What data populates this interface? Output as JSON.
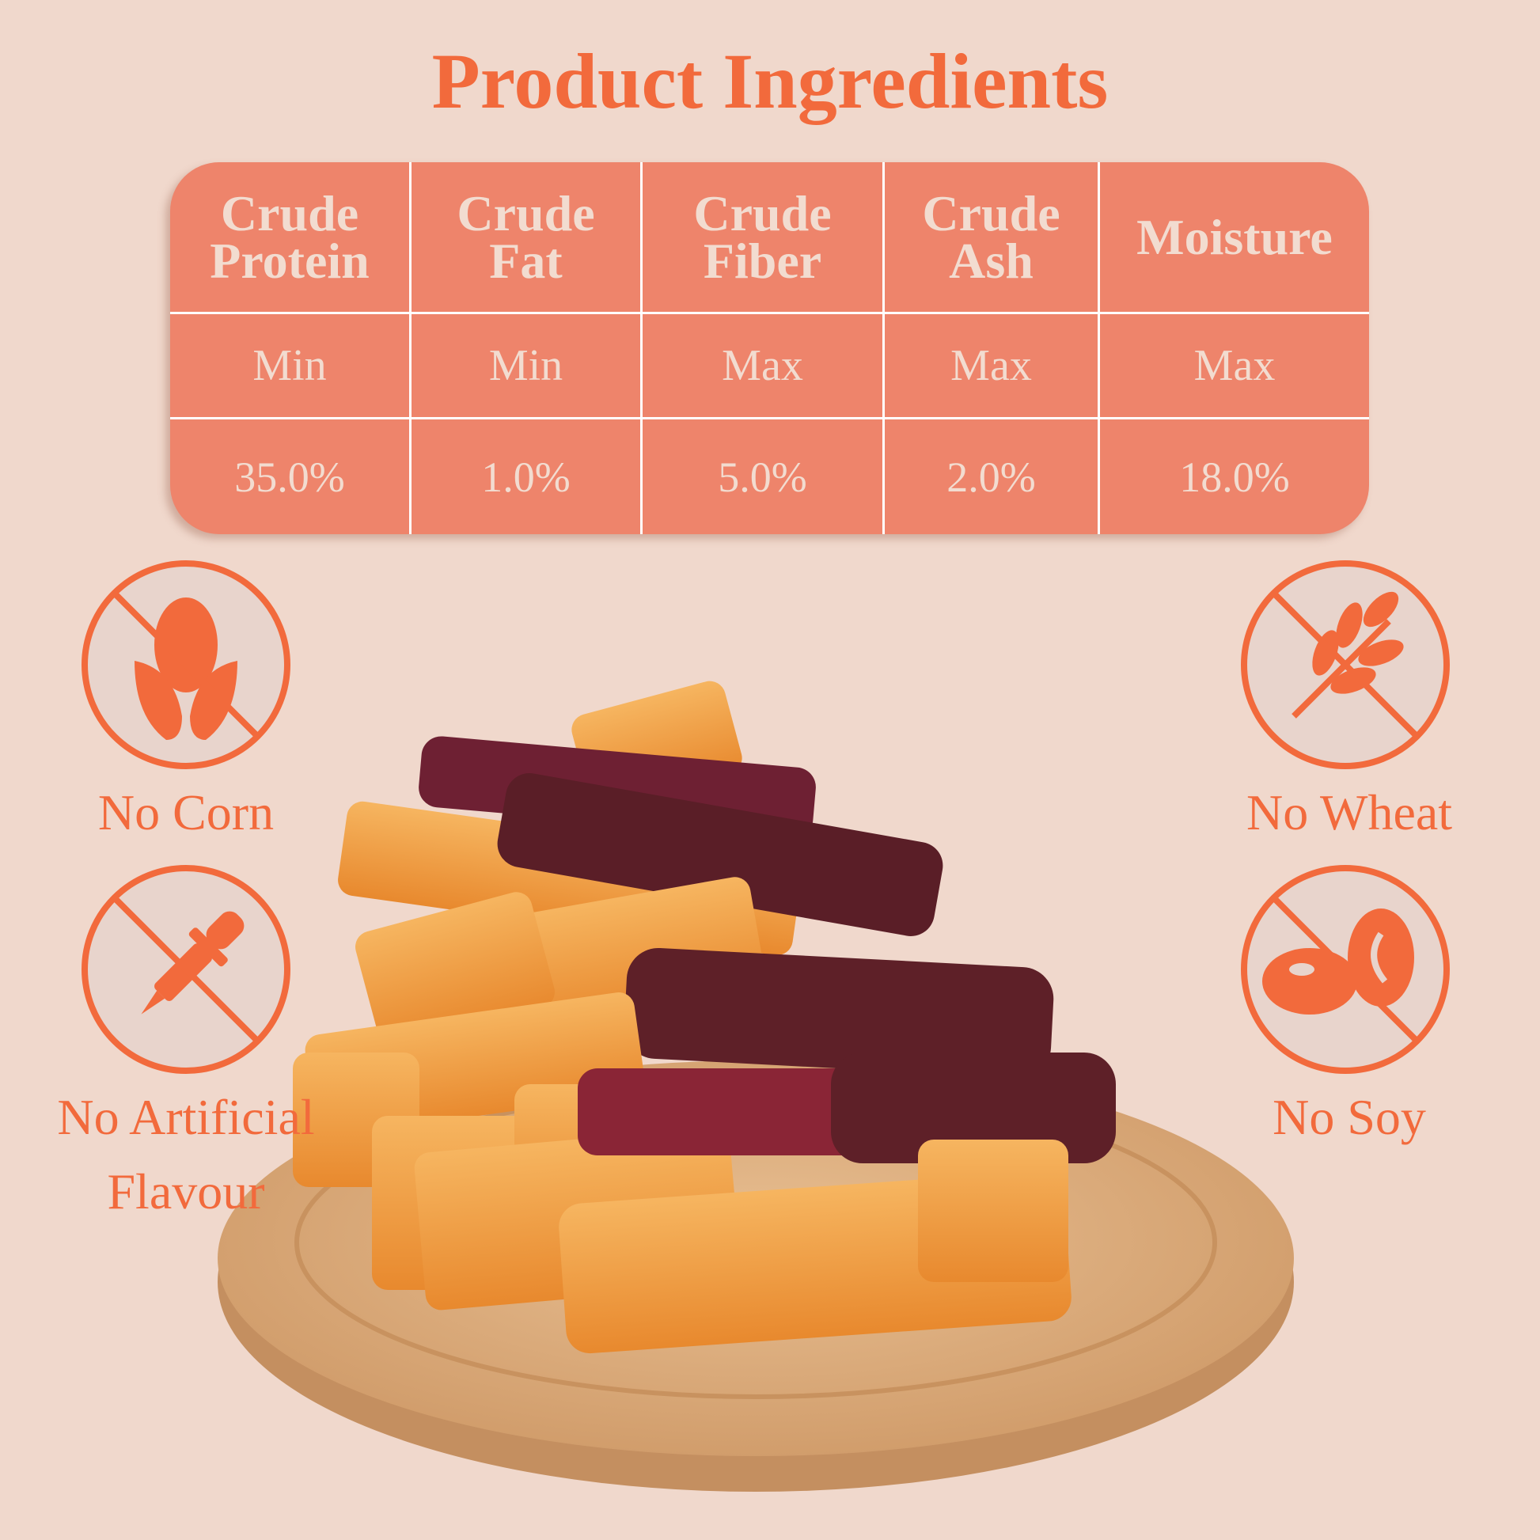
{
  "title": "Product Ingredients",
  "colors": {
    "background": "#f0d8cc",
    "accent": "#f26a3c",
    "table": "#ee846b",
    "table_text": "#f2dcd0"
  },
  "table": {
    "columns": [
      {
        "name": "Crude Protein",
        "line1": "Crude",
        "line2": "Protein",
        "limit": "Min",
        "value": "35.0%"
      },
      {
        "name": "Crude Fat",
        "line1": "Crude",
        "line2": "Fat",
        "limit": "Min",
        "value": "1.0%"
      },
      {
        "name": "Crude Fiber",
        "line1": "Crude",
        "line2": "Fiber",
        "limit": "Max",
        "value": "5.0%"
      },
      {
        "name": "Crude Ash",
        "line1": "Crude",
        "line2": "Ash",
        "limit": "Max",
        "value": "2.0%"
      },
      {
        "name": "Moisture",
        "line1": "Moisture",
        "line2": "",
        "limit": "Max",
        "value": "18.0%"
      }
    ]
  },
  "badges": [
    {
      "icon": "no-corn-icon",
      "label": "No Corn"
    },
    {
      "icon": "no-artificial-flavour-icon",
      "label1": "No Artificial",
      "label2": "Flavour"
    },
    {
      "icon": "no-wheat-icon",
      "label": "No Wheat"
    },
    {
      "icon": "no-soy-icon",
      "label": "No Soy"
    }
  ]
}
